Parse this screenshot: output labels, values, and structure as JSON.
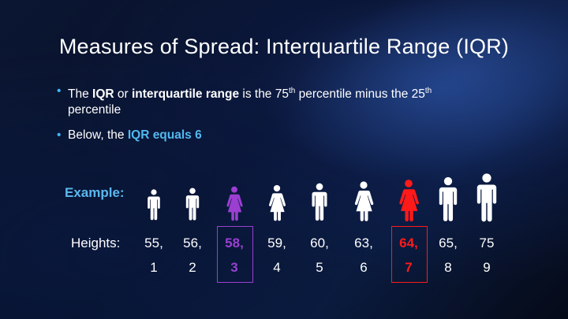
{
  "slide": {
    "title": "Measures of Spread: Interquartile Range (IQR)",
    "bullet1": {
      "t1": "The ",
      "b1": "IQR",
      "t2": " or ",
      "b2": "interquartile range",
      "t3": " is the 75",
      "sup1": "th",
      "t4": " percentile minus the 25",
      "sup2": "th",
      "t5": "percentile"
    },
    "bullet2": {
      "t1": "Below, the ",
      "hl": "IQR equals 6"
    },
    "example_label": "Example:",
    "heights_label": "Heights:",
    "values": [
      {
        "height": "55,",
        "rank": "1",
        "color": "#ffffff"
      },
      {
        "height": "56,",
        "rank": "2",
        "color": "#ffffff"
      },
      {
        "height": "58,",
        "rank": "3",
        "color": "#9b3fd1"
      },
      {
        "height": "59,",
        "rank": "4",
        "color": "#ffffff"
      },
      {
        "height": "60,",
        "rank": "5",
        "color": "#ffffff"
      },
      {
        "height": "63,",
        "rank": "6",
        "color": "#ffffff"
      },
      {
        "height": "64,",
        "rank": "7",
        "color": "#ff1a1a"
      },
      {
        "height": "65,",
        "rank": "8",
        "color": "#ffffff"
      },
      {
        "height": "75",
        "rank": "9",
        "color": "#ffffff"
      }
    ],
    "figures": [
      {
        "gender": "male",
        "color": "#ffffff",
        "icon": "man-icon"
      },
      {
        "gender": "male",
        "color": "#ffffff",
        "icon": "man-icon"
      },
      {
        "gender": "female",
        "color": "#9b3fd1",
        "icon": "woman-icon"
      },
      {
        "gender": "female",
        "color": "#ffffff",
        "icon": "woman-icon"
      },
      {
        "gender": "male",
        "color": "#ffffff",
        "icon": "man-icon"
      },
      {
        "gender": "female",
        "color": "#ffffff",
        "icon": "woman-icon"
      },
      {
        "gender": "female",
        "color": "#ff1a1a",
        "icon": "woman-icon"
      },
      {
        "gender": "male",
        "color": "#ffffff",
        "icon": "man-icon"
      },
      {
        "gender": "male",
        "color": "#ffffff",
        "icon": "man-icon"
      }
    ],
    "highlight_25th_color": "#9b3fd1",
    "highlight_75th_color": "#ff1a1a"
  }
}
